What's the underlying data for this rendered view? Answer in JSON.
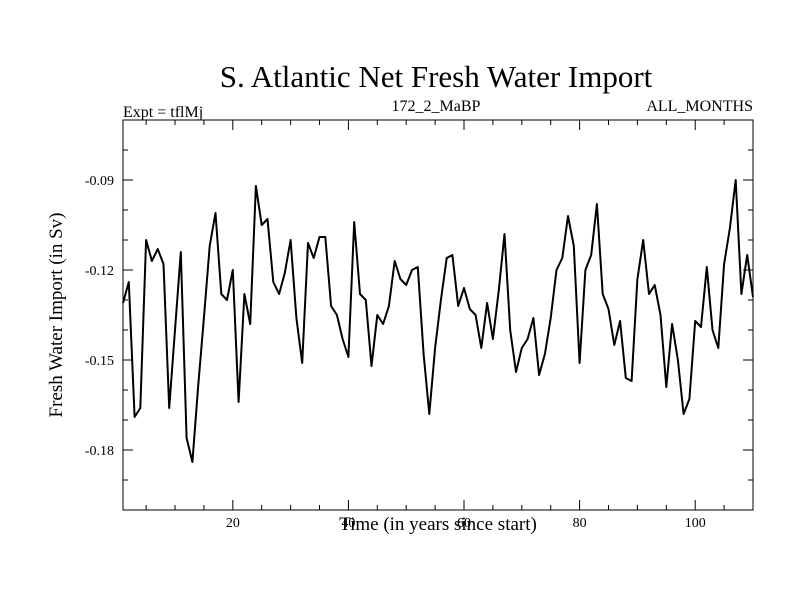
{
  "chart_data": {
    "type": "line",
    "title": "S. Atlantic Net Fresh Water Import",
    "subtitle_left": "Expt = tflMj",
    "subtitle_center": "172_2_MaBP",
    "subtitle_right": "ALL_MONTHS",
    "xlabel": "Time (in years since start)",
    "ylabel": "Fresh Water Import (in Sv)",
    "xlim": [
      1,
      110
    ],
    "ylim": [
      -0.2,
      -0.07
    ],
    "xticks": [
      20,
      40,
      60,
      80,
      100
    ],
    "yticks": [
      -0.18,
      -0.15,
      -0.12,
      -0.09
    ],
    "ytick_labels": [
      "-0.18",
      "-0.15",
      "-0.12",
      "-0.09"
    ],
    "grid": false,
    "series": [
      {
        "name": "Fresh Water Import",
        "x": [
          1,
          2,
          3,
          4,
          5,
          6,
          7,
          8,
          9,
          10,
          11,
          12,
          13,
          14,
          15,
          16,
          17,
          18,
          19,
          20,
          21,
          22,
          23,
          24,
          25,
          26,
          27,
          28,
          29,
          30,
          31,
          32,
          33,
          34,
          35,
          36,
          37,
          38,
          39,
          40,
          41,
          42,
          43,
          44,
          45,
          46,
          47,
          48,
          49,
          50,
          51,
          52,
          53,
          54,
          55,
          56,
          57,
          58,
          59,
          60,
          61,
          62,
          63,
          64,
          65,
          66,
          67,
          68,
          69,
          70,
          71,
          72,
          73,
          74,
          75,
          76,
          77,
          78,
          79,
          80,
          81,
          82,
          83,
          84,
          85,
          86,
          87,
          88,
          89,
          90,
          91,
          92,
          93,
          94,
          95,
          96,
          97,
          98,
          99,
          100,
          101,
          102,
          103,
          104,
          105,
          106,
          107,
          108,
          109,
          110
        ],
        "values": [
          -0.131,
          -0.124,
          -0.169,
          -0.166,
          -0.11,
          -0.117,
          -0.113,
          -0.118,
          -0.166,
          -0.14,
          -0.114,
          -0.176,
          -0.184,
          -0.159,
          -0.136,
          -0.112,
          -0.101,
          -0.128,
          -0.13,
          -0.12,
          -0.164,
          -0.128,
          -0.138,
          -0.092,
          -0.105,
          -0.103,
          -0.124,
          -0.128,
          -0.121,
          -0.11,
          -0.136,
          -0.151,
          -0.111,
          -0.116,
          -0.109,
          -0.109,
          -0.132,
          -0.135,
          -0.143,
          -0.149,
          -0.104,
          -0.128,
          -0.13,
          -0.152,
          -0.135,
          -0.138,
          -0.132,
          -0.117,
          -0.123,
          -0.125,
          -0.12,
          -0.119,
          -0.148,
          -0.168,
          -0.146,
          -0.13,
          -0.116,
          -0.115,
          -0.132,
          -0.126,
          -0.133,
          -0.135,
          -0.146,
          -0.131,
          -0.143,
          -0.127,
          -0.108,
          -0.14,
          -0.154,
          -0.146,
          -0.143,
          -0.136,
          -0.155,
          -0.148,
          -0.136,
          -0.12,
          -0.116,
          -0.102,
          -0.112,
          -0.151,
          -0.12,
          -0.115,
          -0.098,
          -0.128,
          -0.133,
          -0.145,
          -0.137,
          -0.156,
          -0.157,
          -0.123,
          -0.11,
          -0.128,
          -0.125,
          -0.135,
          -0.159,
          -0.138,
          -0.15,
          -0.168,
          -0.163,
          -0.137,
          -0.139,
          -0.119,
          -0.14,
          -0.146,
          -0.118,
          -0.106,
          -0.09,
          -0.128,
          -0.115,
          -0.129
        ]
      }
    ]
  }
}
